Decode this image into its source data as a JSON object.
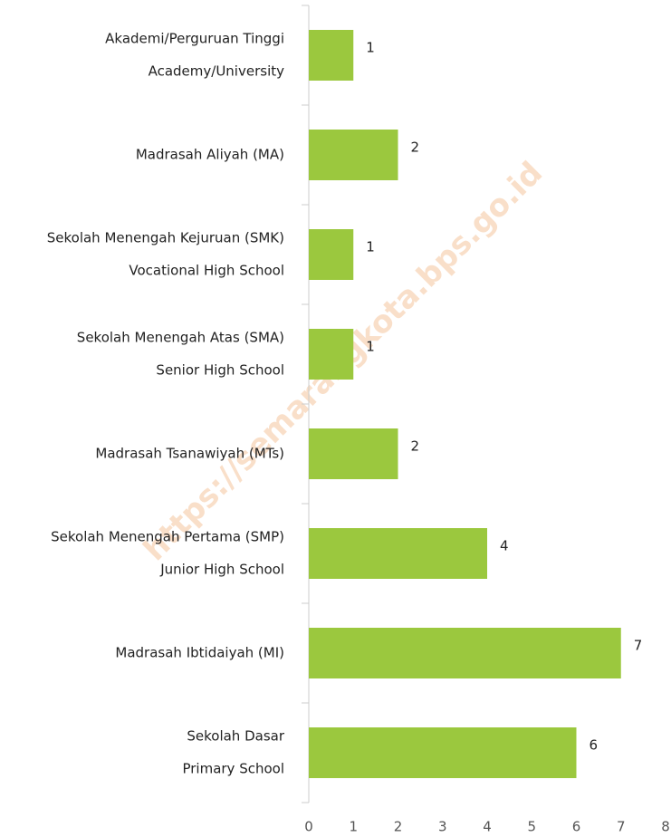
{
  "chart_data": {
    "type": "barh",
    "watermark": "https://semarangkota.bps.go.id",
    "categories": [
      [
        "Akademi/Perguruan Tinggi",
        "Academy/University"
      ],
      [
        "Madrasah Aliyah (MA)"
      ],
      [
        "Sekolah Menengah Kejuruan (SMK)",
        "Vocational High School"
      ],
      [
        "Sekolah Menengah Atas (SMA)",
        "Senior High School"
      ],
      [
        "Madrasah Tsanawiyah (MTs)"
      ],
      [
        "Sekolah Menengah Pertama (SMP)",
        "Junior High School"
      ],
      [
        "Madrasah Ibtidaiyah (MI)"
      ],
      [
        "Sekolah Dasar",
        "Primary School"
      ]
    ],
    "values": [
      1,
      2,
      1,
      1,
      2,
      4,
      7,
      6
    ],
    "color": "#9bc83e",
    "xlim": [
      0,
      8
    ],
    "xticks": [
      0,
      1,
      2,
      3,
      4,
      5,
      6,
      7,
      8
    ],
    "grid": false
  }
}
